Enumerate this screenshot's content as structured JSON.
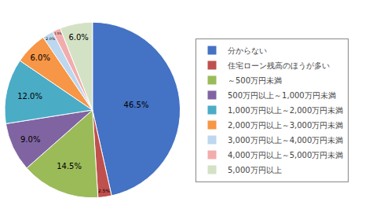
{
  "chart_data": {
    "type": "pie",
    "categories": [
      "分からない",
      "住宅ローン残高のほうが多い",
      "～500万円未満",
      "500万円以上～1,000万円未満",
      "1,000万円以上～2,000万円未満",
      "2,000万円以上～3,000万円未満",
      "3,000万円以上～4,000万円未満",
      "4,000万円以上～5,000万円未満",
      "5,000万円以上"
    ],
    "values": [
      46.5,
      2.5,
      14.5,
      9.0,
      12.0,
      6.0,
      2.0,
      1.5,
      6.0
    ],
    "value_labels": [
      "46.5%",
      "2.5%",
      "14.5%",
      "9.0%",
      "12.0%",
      "6.0%",
      "2.0%",
      "1.5%",
      "6.0%"
    ],
    "colors": [
      "#4472C4",
      "#C0504D",
      "#9BBB59",
      "#8064A2",
      "#4BACC6",
      "#F79646",
      "#BDD7EE",
      "#F2ACAC",
      "#D3E2C4"
    ],
    "data_labels": true,
    "legend": "right"
  }
}
